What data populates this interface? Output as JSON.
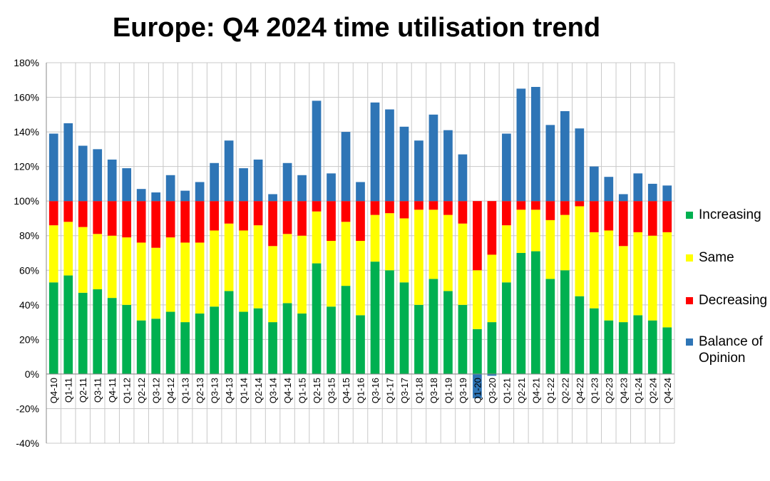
{
  "chart_data": {
    "type": "bar",
    "stacked": true,
    "title": "Europe: Q4 2024 time utilisation trend",
    "xlabel": "",
    "ylabel": "",
    "ylim": [
      -40,
      180
    ],
    "ytick_step": 20,
    "ytick_format": "percent",
    "grid": true,
    "legend": "right",
    "categories": [
      "Q4-10",
      "Q1-11",
      "Q2-11",
      "Q3-11",
      "Q4-11",
      "Q1-12",
      "Q2-12",
      "Q3-12",
      "Q4-12",
      "Q1-13",
      "Q2-13",
      "Q3-13",
      "Q4-13",
      "Q1-14",
      "Q2-14",
      "Q3-14",
      "Q4-14",
      "Q1-15",
      "Q2-15",
      "Q3-15",
      "Q4-15",
      "Q1-16",
      "Q3-16",
      "Q1-17",
      "Q3-17",
      "Q1-18",
      "Q3-18",
      "Q1-19",
      "Q3-19",
      "Q1-20",
      "Q3-20",
      "Q1-21",
      "Q2-21",
      "Q4-21",
      "Q1-22",
      "Q2-22",
      "Q4-22",
      "Q1-23",
      "Q2-23",
      "Q4-23",
      "Q1-24",
      "Q2-24",
      "Q4-24"
    ],
    "series": [
      {
        "name": "Increasing",
        "color": "#00B050",
        "values": [
          53,
          57,
          47,
          49,
          44,
          40,
          31,
          32,
          36,
          30,
          35,
          39,
          48,
          36,
          38,
          30,
          41,
          35,
          64,
          39,
          51,
          34,
          65,
          60,
          53,
          40,
          55,
          48,
          40,
          26,
          30,
          53,
          70,
          71,
          55,
          60,
          45,
          38,
          31,
          30,
          34,
          31,
          27
        ]
      },
      {
        "name": "Same",
        "color": "#FFFF00",
        "values": [
          33,
          31,
          38,
          32,
          36,
          39,
          45,
          41,
          43,
          46,
          41,
          44,
          39,
          47,
          48,
          44,
          40,
          45,
          30,
          38,
          37,
          43,
          27,
          33,
          37,
          55,
          40,
          44,
          47,
          34,
          39,
          33,
          25,
          24,
          34,
          32,
          52,
          44,
          52,
          44,
          48,
          49,
          55
        ]
      },
      {
        "name": "Decreasing",
        "color": "#FF0000",
        "values": [
          14,
          12,
          15,
          19,
          20,
          21,
          24,
          27,
          21,
          24,
          24,
          17,
          13,
          17,
          14,
          26,
          19,
          20,
          6,
          23,
          12,
          23,
          8,
          7,
          10,
          5,
          5,
          8,
          13,
          40,
          31,
          14,
          5,
          5,
          11,
          8,
          3,
          18,
          17,
          26,
          18,
          20,
          18
        ]
      },
      {
        "name": "Balance of Opinion",
        "color": "#2E75B6",
        "values": [
          39,
          45,
          32,
          30,
          24,
          19,
          7,
          5,
          15,
          6,
          11,
          22,
          35,
          19,
          24,
          4,
          22,
          15,
          58,
          16,
          40,
          11,
          57,
          53,
          43,
          35,
          50,
          41,
          27,
          -14,
          -1,
          39,
          65,
          66,
          44,
          52,
          42,
          20,
          14,
          4,
          16,
          10,
          9
        ]
      }
    ],
    "stack_order": [
      "Increasing",
      "Same",
      "Decreasing"
    ],
    "balance_offset": 100
  }
}
